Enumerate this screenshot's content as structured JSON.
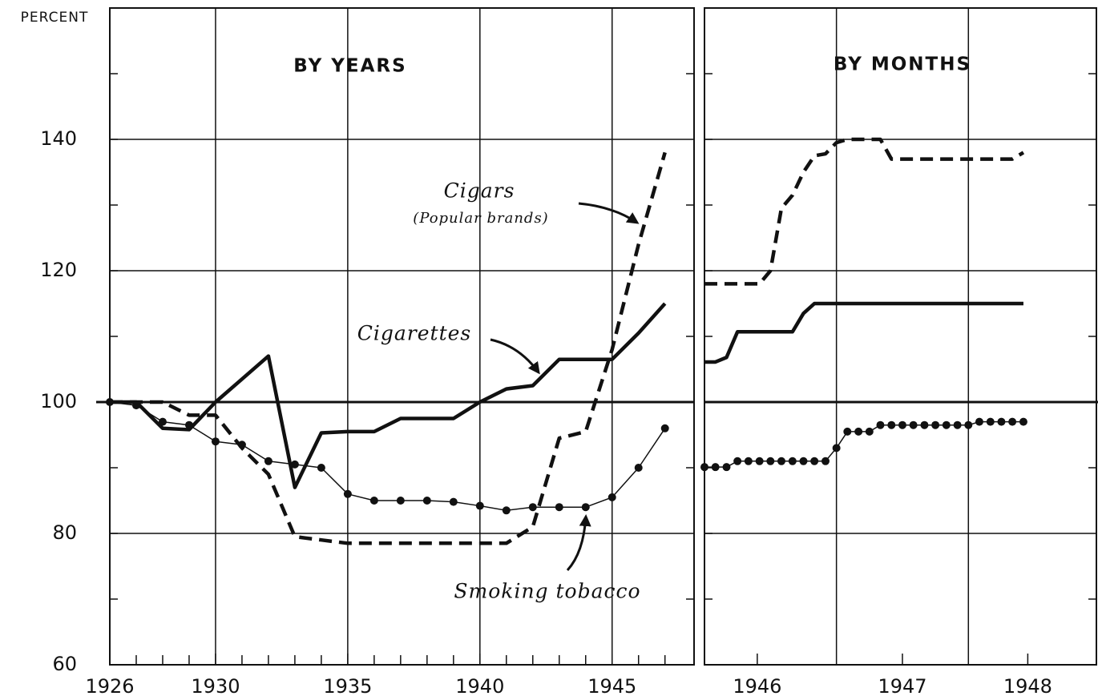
{
  "chart_data": [
    {
      "type": "line",
      "title": "BY YEARS",
      "ylabel": "PERCENT",
      "x": [
        1926,
        1927,
        1928,
        1929,
        1930,
        1931,
        1932,
        1933,
        1934,
        1935,
        1936,
        1937,
        1938,
        1939,
        1940,
        1941,
        1942,
        1943,
        1944,
        1945,
        1946,
        1947
      ],
      "series": [
        {
          "name": "Cigarettes",
          "color": "#111111",
          "style": "solid",
          "values": [
            100,
            100,
            96,
            95.8,
            100,
            103.5,
            107,
            87,
            95.3,
            95.5,
            95.5,
            97.5,
            97.5,
            97.5,
            100,
            102,
            102.5,
            106.5,
            106.5,
            106.5,
            110.5,
            115
          ]
        },
        {
          "name": "Cigars",
          "color": "#111111",
          "style": "dashed",
          "values": [
            100,
            100,
            100,
            98,
            98,
            93,
            89,
            79.5,
            79,
            78.5,
            78.5,
            78.5,
            78.5,
            78.5,
            78.5,
            78.5,
            81,
            94.5,
            95.5,
            108,
            124,
            138
          ]
        },
        {
          "name": "Smoking tobacco",
          "color": "#111111",
          "style": "dotted",
          "values": [
            100,
            99.5,
            97,
            96.5,
            94,
            93.5,
            91,
            90.5,
            90,
            86,
            85,
            85,
            85,
            84.8,
            84.2,
            83.5,
            84,
            84,
            84,
            85.5,
            90,
            96
          ]
        }
      ],
      "annotations": [
        "(Popular brands)"
      ],
      "xlim": [
        1926,
        1948.1
      ],
      "xticks": [
        1926,
        1930,
        1935,
        1940,
        1945
      ],
      "xgrid": [
        1930,
        1935,
        1940,
        1945
      ],
      "xminor": [
        1927,
        1928,
        1929,
        1931,
        1932,
        1933,
        1934,
        1936,
        1937,
        1938,
        1939,
        1941,
        1942,
        1943,
        1944,
        1946,
        1947
      ],
      "ylim": [
        60,
        160
      ],
      "yticks": [
        60,
        80,
        100,
        120,
        140
      ],
      "ygrid": [
        80,
        100,
        120,
        140
      ],
      "yminor": [
        70,
        90,
        110,
        130,
        150
      ],
      "reference_line": 100
    },
    {
      "type": "line",
      "title": "BY MONTHS",
      "x": [
        1946,
        1946.083,
        1946.167,
        1946.25,
        1946.333,
        1946.417,
        1946.5,
        1946.583,
        1946.667,
        1946.75,
        1946.833,
        1946.917,
        1947,
        1947.083,
        1947.167,
        1947.25,
        1947.333,
        1947.417,
        1947.5,
        1947.583,
        1947.667,
        1947.75,
        1947.833,
        1947.917,
        1948,
        1948.083,
        1948.167,
        1948.25,
        1948.333,
        1948.417
      ],
      "series": [
        {
          "color": "#111111",
          "style": "solid",
          "values": [
            106.1,
            106.1,
            106.8,
            110.7,
            110.7,
            110.7,
            110.7,
            110.7,
            110.7,
            113.5,
            115,
            115,
            115,
            115,
            115,
            115,
            115,
            115,
            115,
            115,
            115,
            115,
            115,
            115,
            115,
            115,
            115,
            115,
            115,
            115
          ]
        },
        {
          "color": "#111111",
          "style": "dashed",
          "values": [
            118,
            118,
            118,
            118,
            118,
            118,
            120,
            129.5,
            131.5,
            135,
            137.5,
            137.8,
            139.5,
            140,
            140,
            140,
            140,
            137,
            137,
            137,
            137,
            137,
            137,
            137,
            137,
            137,
            137,
            137,
            137,
            138
          ]
        },
        {
          "color": "#111111",
          "style": "dotted",
          "values": [
            90.1,
            90.1,
            90.1,
            91,
            91,
            91,
            91,
            91,
            91,
            91,
            91,
            91,
            93,
            95.5,
            95.5,
            95.5,
            96.5,
            96.5,
            96.5,
            96.5,
            96.5,
            96.5,
            96.5,
            96.5,
            96.5,
            97,
            97,
            97,
            97,
            97
          ]
        }
      ],
      "xlim": [
        1946,
        1948.97
      ],
      "xticks": [
        {
          "value": 1946.4,
          "label": "1946"
        },
        {
          "value": 1947.5,
          "label": "1947"
        },
        {
          "value": 1948.45,
          "label": "1948"
        }
      ],
      "xgrid": [
        1947,
        1948
      ],
      "ylim": [
        60,
        160
      ],
      "yticks": [
        60,
        80,
        100,
        120,
        140
      ],
      "ygrid": [
        80,
        100,
        120,
        140
      ],
      "yminor": [
        70,
        90,
        110,
        130,
        150
      ],
      "reference_line": 100
    }
  ]
}
